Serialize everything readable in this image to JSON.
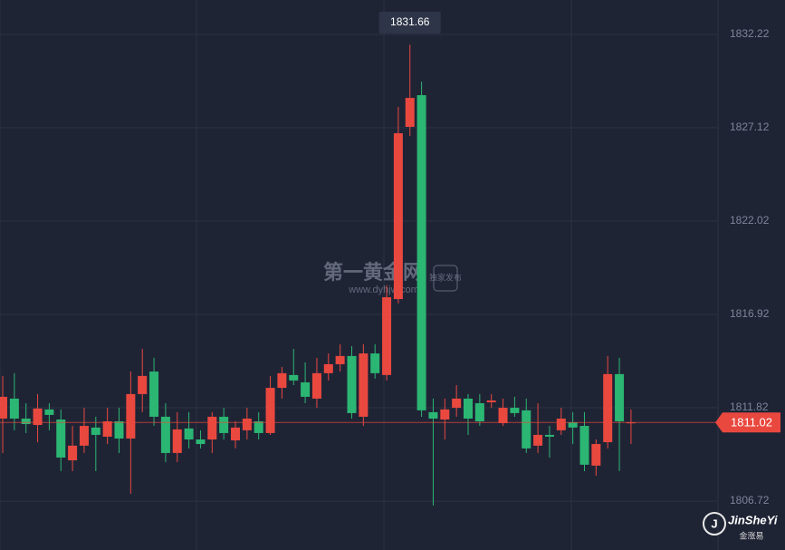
{
  "chart_data": {
    "type": "candlestick",
    "up_color": "#e9483f",
    "down_color": "#2bb673",
    "ylim": [
      1804.05,
      1834.1
    ],
    "yticks": [
      1806.72,
      1811.82,
      1816.92,
      1822.02,
      1827.12,
      1832.22
    ],
    "grid": true,
    "open": [
      1811.23,
      1812.32,
      1811.23,
      1810.88,
      1811.73,
      1811.18,
      1808.95,
      1809.75,
      1810.74,
      1810.24,
      1811.08,
      1810.14,
      1812.57,
      1813.8,
      1811.33,
      1809.35,
      1810.69,
      1810.09,
      1810.09,
      1811.33,
      1810.04,
      1810.59,
      1811.08,
      1810.44,
      1812.91,
      1813.61,
      1813.21,
      1812.32,
      1813.71,
      1814.2,
      1814.65,
      1811.33,
      1814.79,
      1813.61,
      1817.76,
      1827.17,
      1828.9,
      1811.58,
      1811.18,
      1811.82,
      1812.32,
      1812.07,
      1812.12,
      1810.98,
      1811.82,
      1811.68,
      1809.75,
      1810.34,
      1810.59,
      1811.03,
      1810.83,
      1808.66,
      1809.94,
      1813.66,
      1811.02
    ],
    "high": [
      1813.56,
      1813.71,
      1812.07,
      1812.57,
      1812.07,
      1811.73,
      1810.83,
      1811.82,
      1811.33,
      1811.82,
      1811.82,
      1813.8,
      1815.04,
      1814.55,
      1812.07,
      1811.58,
      1811.58,
      1810.59,
      1811.58,
      1811.82,
      1811.08,
      1811.82,
      1811.58,
      1813.56,
      1814.05,
      1815.04,
      1814.3,
      1814.55,
      1814.79,
      1815.29,
      1815.19,
      1815.29,
      1815.29,
      1818.51,
      1828.26,
      1831.66,
      1829.64,
      1812.32,
      1812.32,
      1813.06,
      1812.57,
      1812.57,
      1812.57,
      1812.32,
      1812.42,
      1812.32,
      1812.07,
      1810.83,
      1811.82,
      1811.58,
      1811.58,
      1810.09,
      1814.65,
      1814.55,
      1811.73
    ],
    "low": [
      1809.35,
      1810.59,
      1810.44,
      1809.94,
      1810.59,
      1808.36,
      1808.36,
      1809.35,
      1808.36,
      1809.84,
      1809.35,
      1807.12,
      1811.58,
      1810.83,
      1808.85,
      1808.85,
      1809.6,
      1809.6,
      1809.35,
      1810.09,
      1809.6,
      1810.09,
      1810.09,
      1810.34,
      1812.32,
      1813.06,
      1812.07,
      1811.82,
      1813.31,
      1813.8,
      1811.23,
      1810.83,
      1813.41,
      1813.31,
      1817.52,
      1826.67,
      1811.33,
      1806.48,
      1810.09,
      1811.33,
      1810.34,
      1810.83,
      1811.82,
      1810.83,
      1811.33,
      1809.35,
      1809.35,
      1809.1,
      1810.34,
      1809.84,
      1808.36,
      1808.11,
      1809.6,
      1808.36,
      1809.84
    ],
    "close": [
      1812.42,
      1811.23,
      1810.93,
      1811.78,
      1811.43,
      1809.1,
      1809.75,
      1810.83,
      1810.34,
      1811.08,
      1810.14,
      1812.57,
      1813.56,
      1811.33,
      1809.35,
      1810.64,
      1810.09,
      1809.84,
      1811.33,
      1810.44,
      1810.74,
      1811.23,
      1810.44,
      1812.91,
      1813.71,
      1813.31,
      1812.42,
      1813.71,
      1814.2,
      1814.65,
      1811.53,
      1814.79,
      1813.71,
      1817.86,
      1826.82,
      1828.75,
      1811.68,
      1811.23,
      1811.73,
      1812.32,
      1811.23,
      1811.08,
      1812.22,
      1811.82,
      1811.53,
      1809.6,
      1810.34,
      1810.24,
      1811.23,
      1810.74,
      1808.71,
      1809.84,
      1813.66,
      1811.08,
      1811.02
    ],
    "watermark": {
      "brand": "第一黄金网",
      "url": "www.dyhjw.com",
      "badge": "独家发布"
    },
    "logo": {
      "name": "JinSheYi",
      "sub": "金涨易"
    }
  }
}
